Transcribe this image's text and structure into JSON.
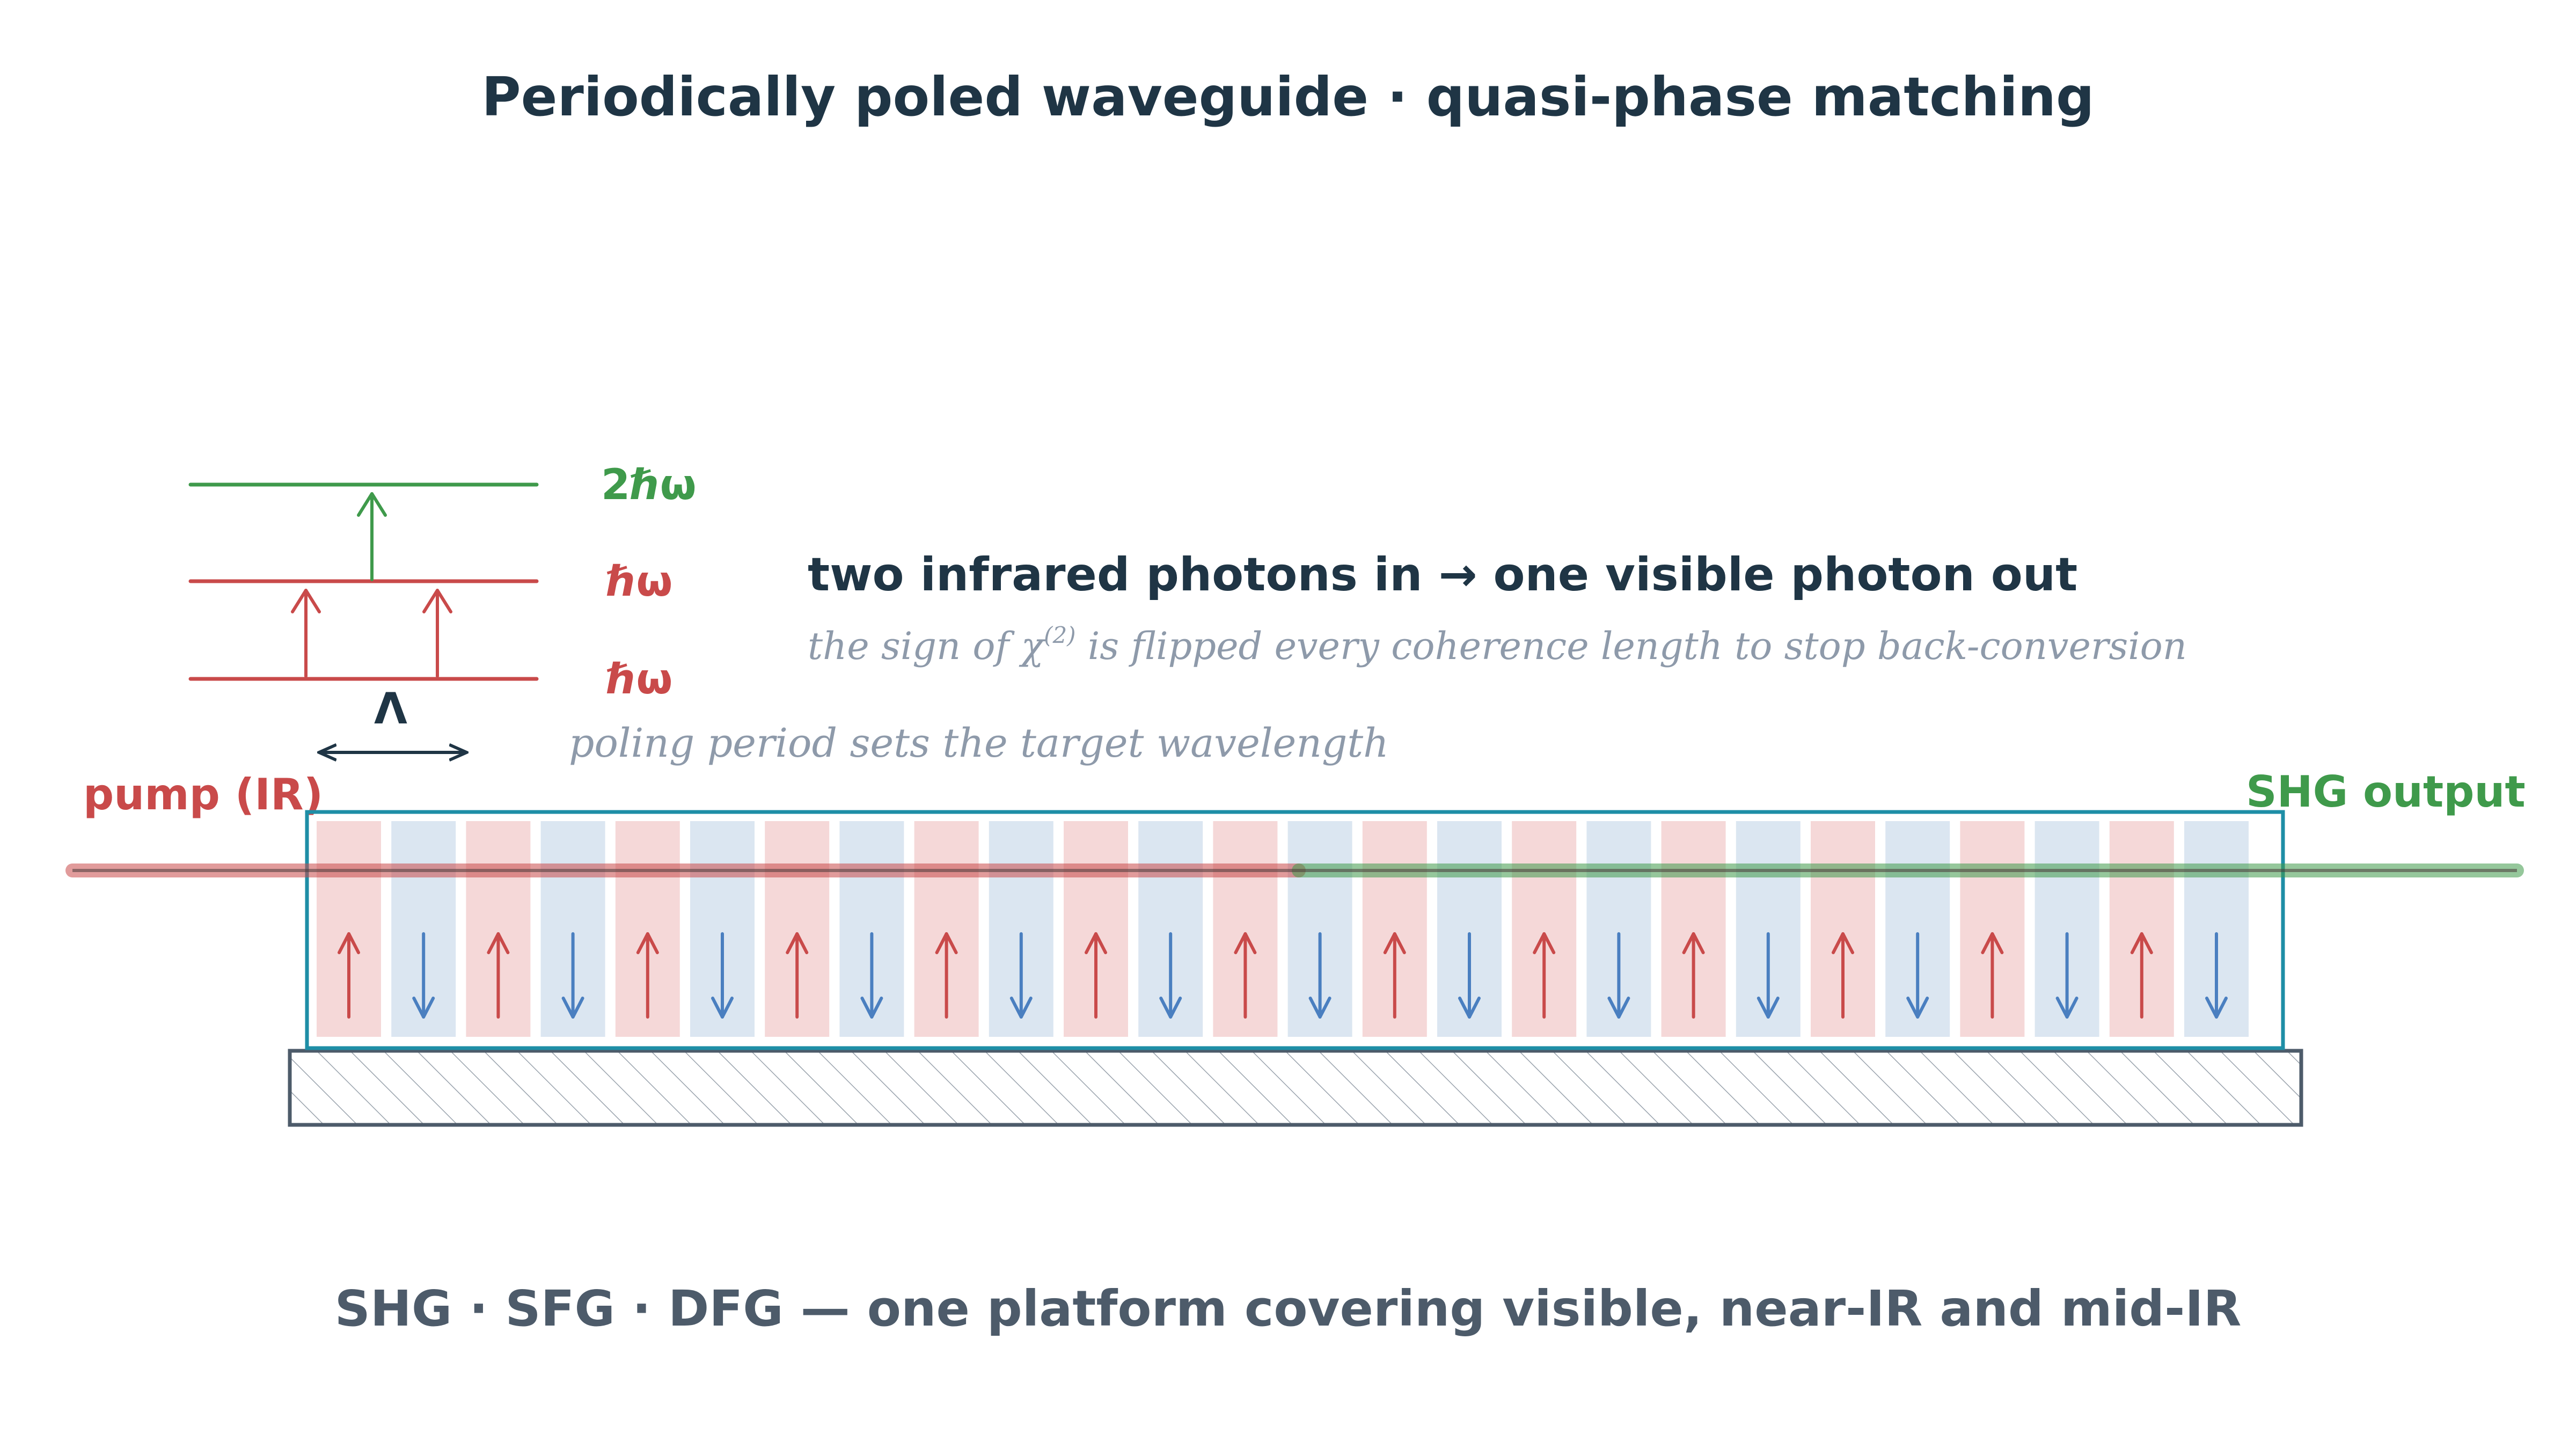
{
  "title": "Periodically poled waveguide · quasi-phase matching",
  "energy_levels": {
    "top_label": "2ℏω",
    "mid_label": "ℏω",
    "low_label": "ℏω"
  },
  "headline": "two infrared photons in → one visible photon out",
  "explanation": {
    "before": "the sign of χ",
    "superscript": "(2)",
    "after": " is flipped every coherence length to stop back-conversion"
  },
  "period": {
    "symbol": "Λ",
    "caption": "poling period sets the target wavelength"
  },
  "beam": {
    "input_label": "pump (IR)",
    "output_label": "SHG output"
  },
  "waveguide": {
    "domain_count": 26,
    "domain_orientations": [
      "up",
      "down",
      "up",
      "down",
      "up",
      "down",
      "up",
      "down",
      "up",
      "down",
      "up",
      "down",
      "up",
      "down",
      "up",
      "down",
      "up",
      "down",
      "up",
      "down",
      "up",
      "down",
      "up",
      "down",
      "up",
      "down"
    ]
  },
  "footer": "SHG · SFG · DFG — one platform covering visible, near-IR and mid-IR",
  "colors": {
    "ink": "#1f3545",
    "red": "#c94a4a",
    "green": "#3f9a4b",
    "blue": "#4a7fc0",
    "teal": "#1e8ea6",
    "grey": "#8e9aaa",
    "slate": "#4d5b6a",
    "domain_up_fill": "#f5d8d8",
    "domain_down_fill": "#dbe6f1"
  }
}
